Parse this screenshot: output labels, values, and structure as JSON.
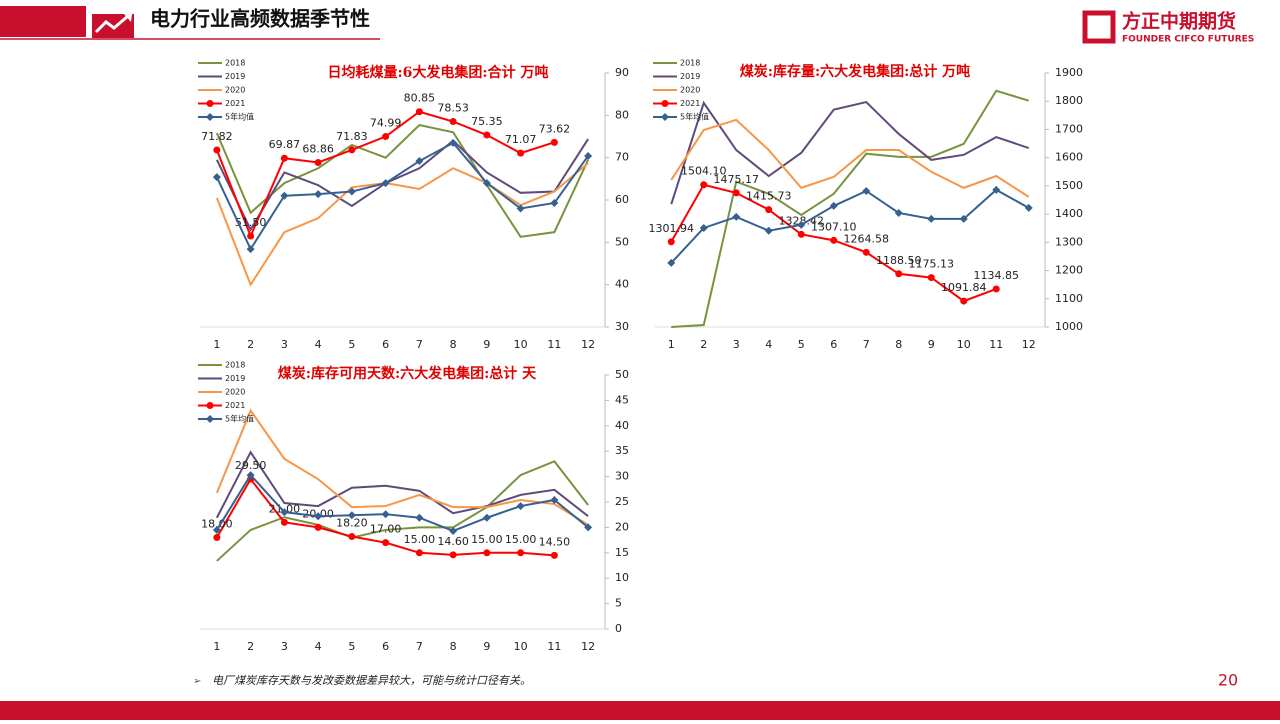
{
  "header": {
    "title": "电力行业高频数据季节性"
  },
  "logo": {
    "name": "方正中期期货",
    "subtitle": "FOUNDER CIFCO FUTURES"
  },
  "footnote": "电厂煤炭库存天数与发改委数据差异较大，可能与统计口径有关。",
  "page_number": "20",
  "chart_data": [
    {
      "type": "line",
      "title": "日均耗煤量:6大发电集团:合计 万吨",
      "categories": [
        "1",
        "2",
        "3",
        "4",
        "5",
        "6",
        "7",
        "8",
        "9",
        "10",
        "11",
        "12"
      ],
      "ylim": [
        30,
        90
      ],
      "yticks": [
        30,
        40,
        50,
        60,
        70,
        80,
        90
      ],
      "y_axis_side": "right",
      "legend": "upper left",
      "series": [
        {
          "name": "2018",
          "color": "#77933c",
          "values": [
            75.8,
            57,
            64,
            67.5,
            73,
            70,
            77.7,
            76,
            63.5,
            51.3,
            52.4,
            69.5
          ]
        },
        {
          "name": "2019",
          "color": "#604a7b",
          "values": [
            69.5,
            53,
            66.5,
            63.5,
            58.6,
            64,
            67.5,
            74,
            66.5,
            61.7,
            62,
            74.4
          ]
        },
        {
          "name": "2020",
          "color": "#f79646",
          "values": [
            60.5,
            40,
            52.4,
            55.7,
            63,
            64,
            62.6,
            67.5,
            64,
            58.8,
            62,
            68.7
          ]
        },
        {
          "name": "2021",
          "color": "#ff0000",
          "marker": "circle",
          "values": [
            71.82,
            51.5,
            69.87,
            68.86,
            71.83,
            74.99,
            80.85,
            78.53,
            75.35,
            71.07,
            73.62,
            null
          ],
          "value_labels": [
            "71.82",
            "51.50",
            "69.87",
            "68.86",
            "71.83",
            "74.99",
            "80.85",
            "78.53",
            "75.35",
            "71.07",
            "73.62",
            null
          ]
        },
        {
          "name": "5年均值",
          "color": "#376092",
          "marker": "diamond",
          "values": [
            65.4,
            48.4,
            61,
            61.4,
            62,
            64,
            69.2,
            73.5,
            64,
            58,
            59.3,
            70.4
          ]
        }
      ]
    },
    {
      "type": "line",
      "title": "煤炭:库存量:六大发电集团:总计 万吨",
      "categories": [
        "1",
        "2",
        "3",
        "4",
        "5",
        "6",
        "7",
        "8",
        "9",
        "10",
        "11",
        "12"
      ],
      "ylim": [
        1000,
        1900
      ],
      "yticks": [
        1000,
        1100,
        1200,
        1300,
        1400,
        1500,
        1600,
        1700,
        1800,
        1900
      ],
      "y_axis_side": "right",
      "legend": "upper left",
      "series": [
        {
          "name": "2018",
          "color": "#77933c",
          "values": [
            1000,
            1007,
            1515,
            1472,
            1397,
            1472,
            1614,
            1603,
            1603,
            1649,
            1837,
            1802
          ]
        },
        {
          "name": "2019",
          "color": "#604a7b",
          "values": [
            1435,
            1794,
            1627,
            1535,
            1617,
            1770,
            1797,
            1684,
            1592,
            1610,
            1673,
            1634
          ]
        },
        {
          "name": "2020",
          "color": "#f79646",
          "values": [
            1521,
            1698,
            1734,
            1627,
            1493,
            1532,
            1627,
            1627,
            1550,
            1493,
            1535,
            1461
          ]
        },
        {
          "name": "2021",
          "color": "#ff0000",
          "marker": "circle",
          "values": [
            1301.94,
            1504.1,
            1475.17,
            1415.73,
            1328.42,
            1307.1,
            1264.58,
            1188.5,
            1175.13,
            1091.84,
            1134.85,
            null
          ],
          "value_labels": [
            "1301.94",
            "1504.10",
            "1475.17",
            "1415.73",
            "1328.42",
            "1307.10",
            "1264.58",
            "1188.50",
            "1175.13",
            "1091.84",
            "1134.85",
            null
          ]
        },
        {
          "name": "5年均值",
          "color": "#376092",
          "marker": "diamond",
          "values": [
            1227,
            1351,
            1390,
            1341,
            1362,
            1429,
            1482,
            1404,
            1383,
            1383,
            1486,
            1422
          ]
        }
      ]
    },
    {
      "type": "line",
      "title": "煤炭:库存可用天数:六大发电集团:总计 天",
      "categories": [
        "1",
        "2",
        "3",
        "4",
        "5",
        "6",
        "7",
        "8",
        "9",
        "10",
        "11",
        "12"
      ],
      "ylim": [
        0,
        50
      ],
      "yticks": [
        0,
        5,
        10,
        15,
        20,
        25,
        30,
        35,
        40,
        45,
        50
      ],
      "y_axis_side": "right",
      "legend": "upper left",
      "series": [
        {
          "name": "2018",
          "color": "#77933c",
          "values": [
            13.4,
            19.5,
            22,
            20.5,
            18,
            19.5,
            20,
            20,
            24,
            30.3,
            33,
            24.4
          ]
        },
        {
          "name": "2019",
          "color": "#604a7b",
          "values": [
            21.9,
            34.8,
            24.8,
            24.2,
            27.8,
            28.2,
            27.2,
            22.8,
            24.2,
            26.4,
            27.4,
            22.2
          ]
        },
        {
          "name": "2020",
          "color": "#f79646",
          "values": [
            26.8,
            43,
            33.5,
            29.5,
            24,
            24.2,
            26.4,
            24,
            24,
            25.4,
            24.6,
            20.5
          ]
        },
        {
          "name": "2021",
          "color": "#ff0000",
          "marker": "circle",
          "values": [
            18,
            29.5,
            21,
            20,
            18.2,
            17,
            15,
            14.6,
            15,
            15,
            14.5,
            null
          ],
          "value_labels": [
            "18.00",
            "29.50",
            "21.00",
            "20.00",
            "18.20",
            "17.00",
            "15.00",
            "14.60",
            "15.00",
            "15.00",
            "14.50",
            null
          ]
        },
        {
          "name": "5年均值",
          "color": "#376092",
          "marker": "diamond",
          "values": [
            19.5,
            30.3,
            23,
            22.2,
            22.4,
            22.6,
            21.9,
            19.3,
            21.9,
            24.2,
            25.4,
            20
          ]
        }
      ]
    }
  ]
}
